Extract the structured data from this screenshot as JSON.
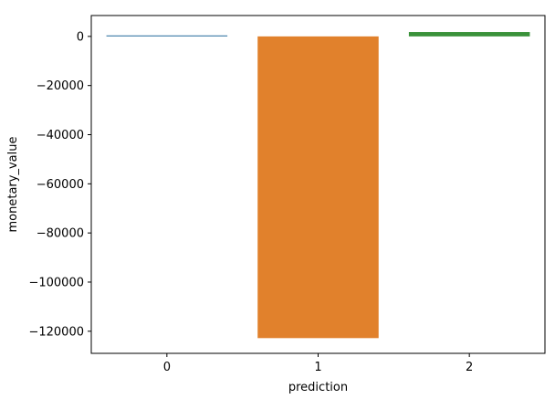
{
  "chart_data": {
    "type": "bar",
    "xlabel": "prediction",
    "ylabel": "monetary_value",
    "categories": [
      "0",
      "1",
      "2"
    ],
    "values": [
      400,
      -122800,
      1800
    ],
    "colors": [
      "#3274a1",
      "#e1812c",
      "#3a923a"
    ],
    "ylim": [
      -129000,
      8500
    ],
    "yticks": [
      0,
      -20000,
      -40000,
      -60000,
      -80000,
      -100000,
      -120000
    ],
    "ytick_labels": [
      "0",
      "−20000",
      "−40000",
      "−60000",
      "−80000",
      "−100000",
      "−120000"
    ],
    "grid": false,
    "legend": "none"
  }
}
